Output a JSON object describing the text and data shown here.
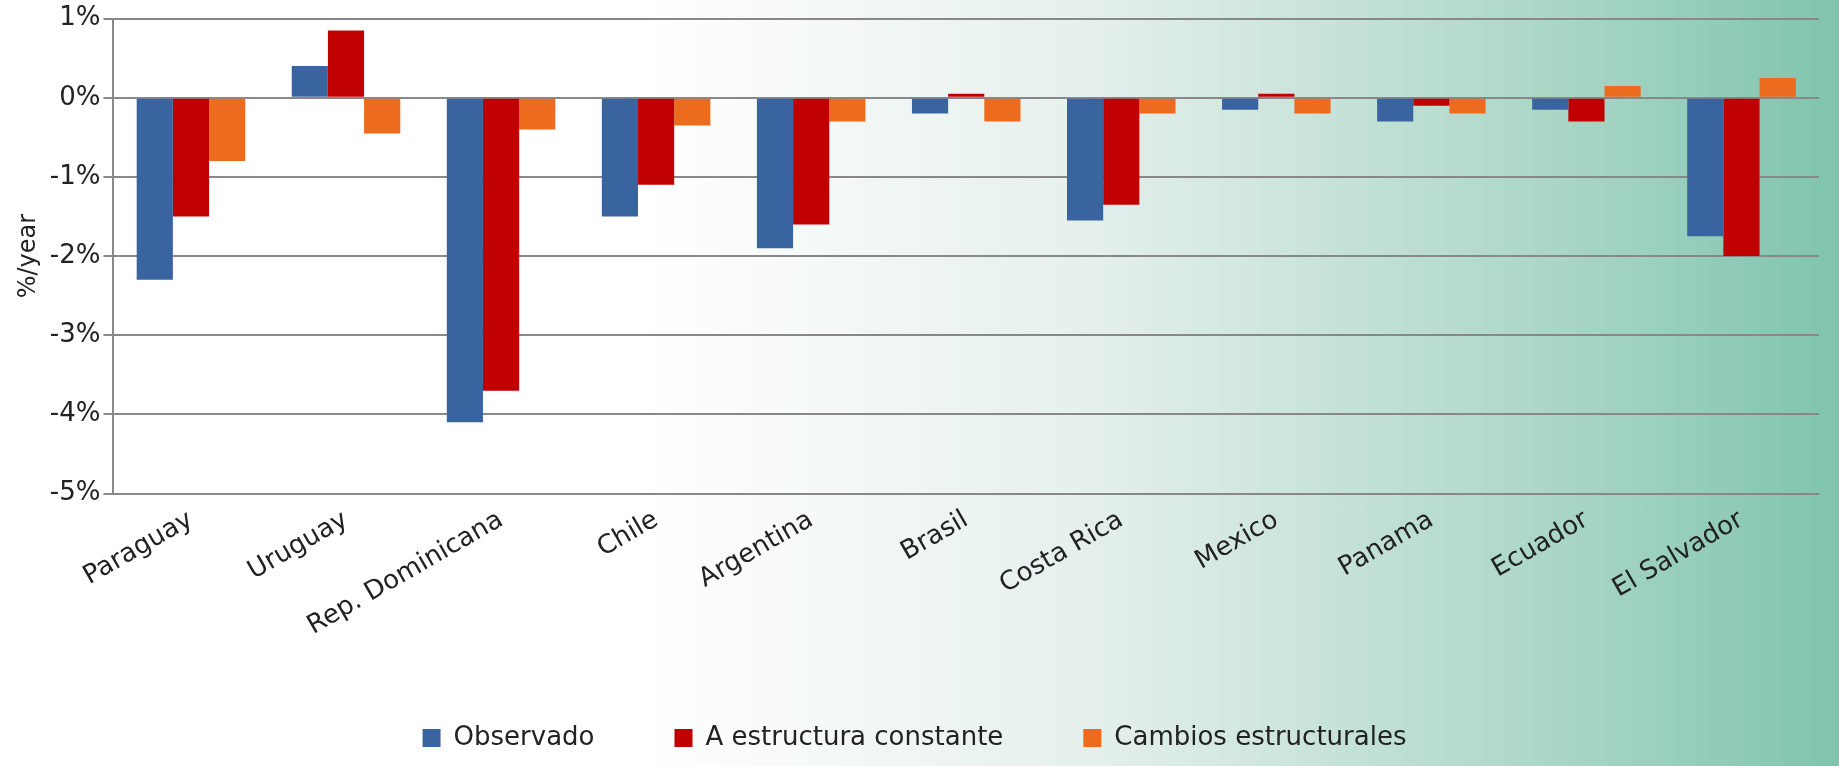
{
  "chart_data": {
    "type": "bar",
    "ylabel": "%/year",
    "categories": [
      "Paraguay",
      "Uruguay",
      "Rep. Dominicana",
      "Chile",
      "Argentina",
      "Brasil",
      "Costa Rica",
      "Mexico",
      "Panama",
      "Ecuador",
      "El Salvador"
    ],
    "series": [
      {
        "name": "Observado",
        "color": "#3a64a0",
        "values": [
          -2.3,
          0.4,
          -4.1,
          -1.5,
          -1.9,
          -0.2,
          -1.55,
          -0.15,
          -0.3,
          -0.15,
          -1.75
        ]
      },
      {
        "name": "A estructura constante",
        "color": "#c00000",
        "values": [
          -1.5,
          0.85,
          -3.7,
          -1.1,
          -1.6,
          0.05,
          -1.35,
          0.05,
          -0.1,
          -0.3,
          -2.0
        ]
      },
      {
        "name": "Cambios estructurales",
        "color": "#ec6b1e",
        "values": [
          -0.8,
          -0.45,
          -0.4,
          -0.35,
          -0.3,
          -0.3,
          -0.2,
          -0.2,
          -0.2,
          0.15,
          0.25
        ]
      }
    ],
    "ylim": [
      -5,
      1
    ],
    "yticks": [
      {
        "value": 1,
        "label": "1%"
      },
      {
        "value": 0,
        "label": "0%"
      },
      {
        "value": -1,
        "label": "-1%"
      },
      {
        "value": -2,
        "label": "-2%"
      },
      {
        "value": -3,
        "label": "-3%"
      },
      {
        "value": -4,
        "label": "-4%"
      },
      {
        "value": -5,
        "label": "-5%"
      }
    ],
    "grid": "y",
    "legend": "bottom"
  }
}
